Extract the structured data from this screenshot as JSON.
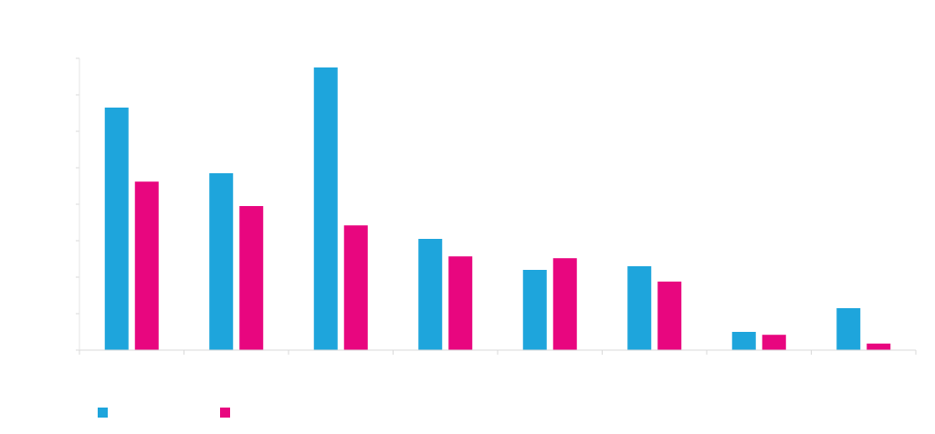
{
  "chart_data": {
    "type": "bar",
    "categories": [
      "",
      "",
      "",
      "",
      "",
      "",
      "",
      ""
    ],
    "series": [
      {
        "color": "#1ea5dc",
        "values": [
          66.5,
          48.5,
          77.5,
          30.5,
          22,
          23,
          5,
          11.5
        ]
      },
      {
        "color": "#e8067f",
        "values": [
          46.2,
          39.5,
          34.2,
          25.7,
          25.2,
          18.8,
          4.2,
          1.8
        ]
      }
    ],
    "ylim": [
      0,
      80
    ],
    "grid": false,
    "legend_position": "bottom-left"
  }
}
